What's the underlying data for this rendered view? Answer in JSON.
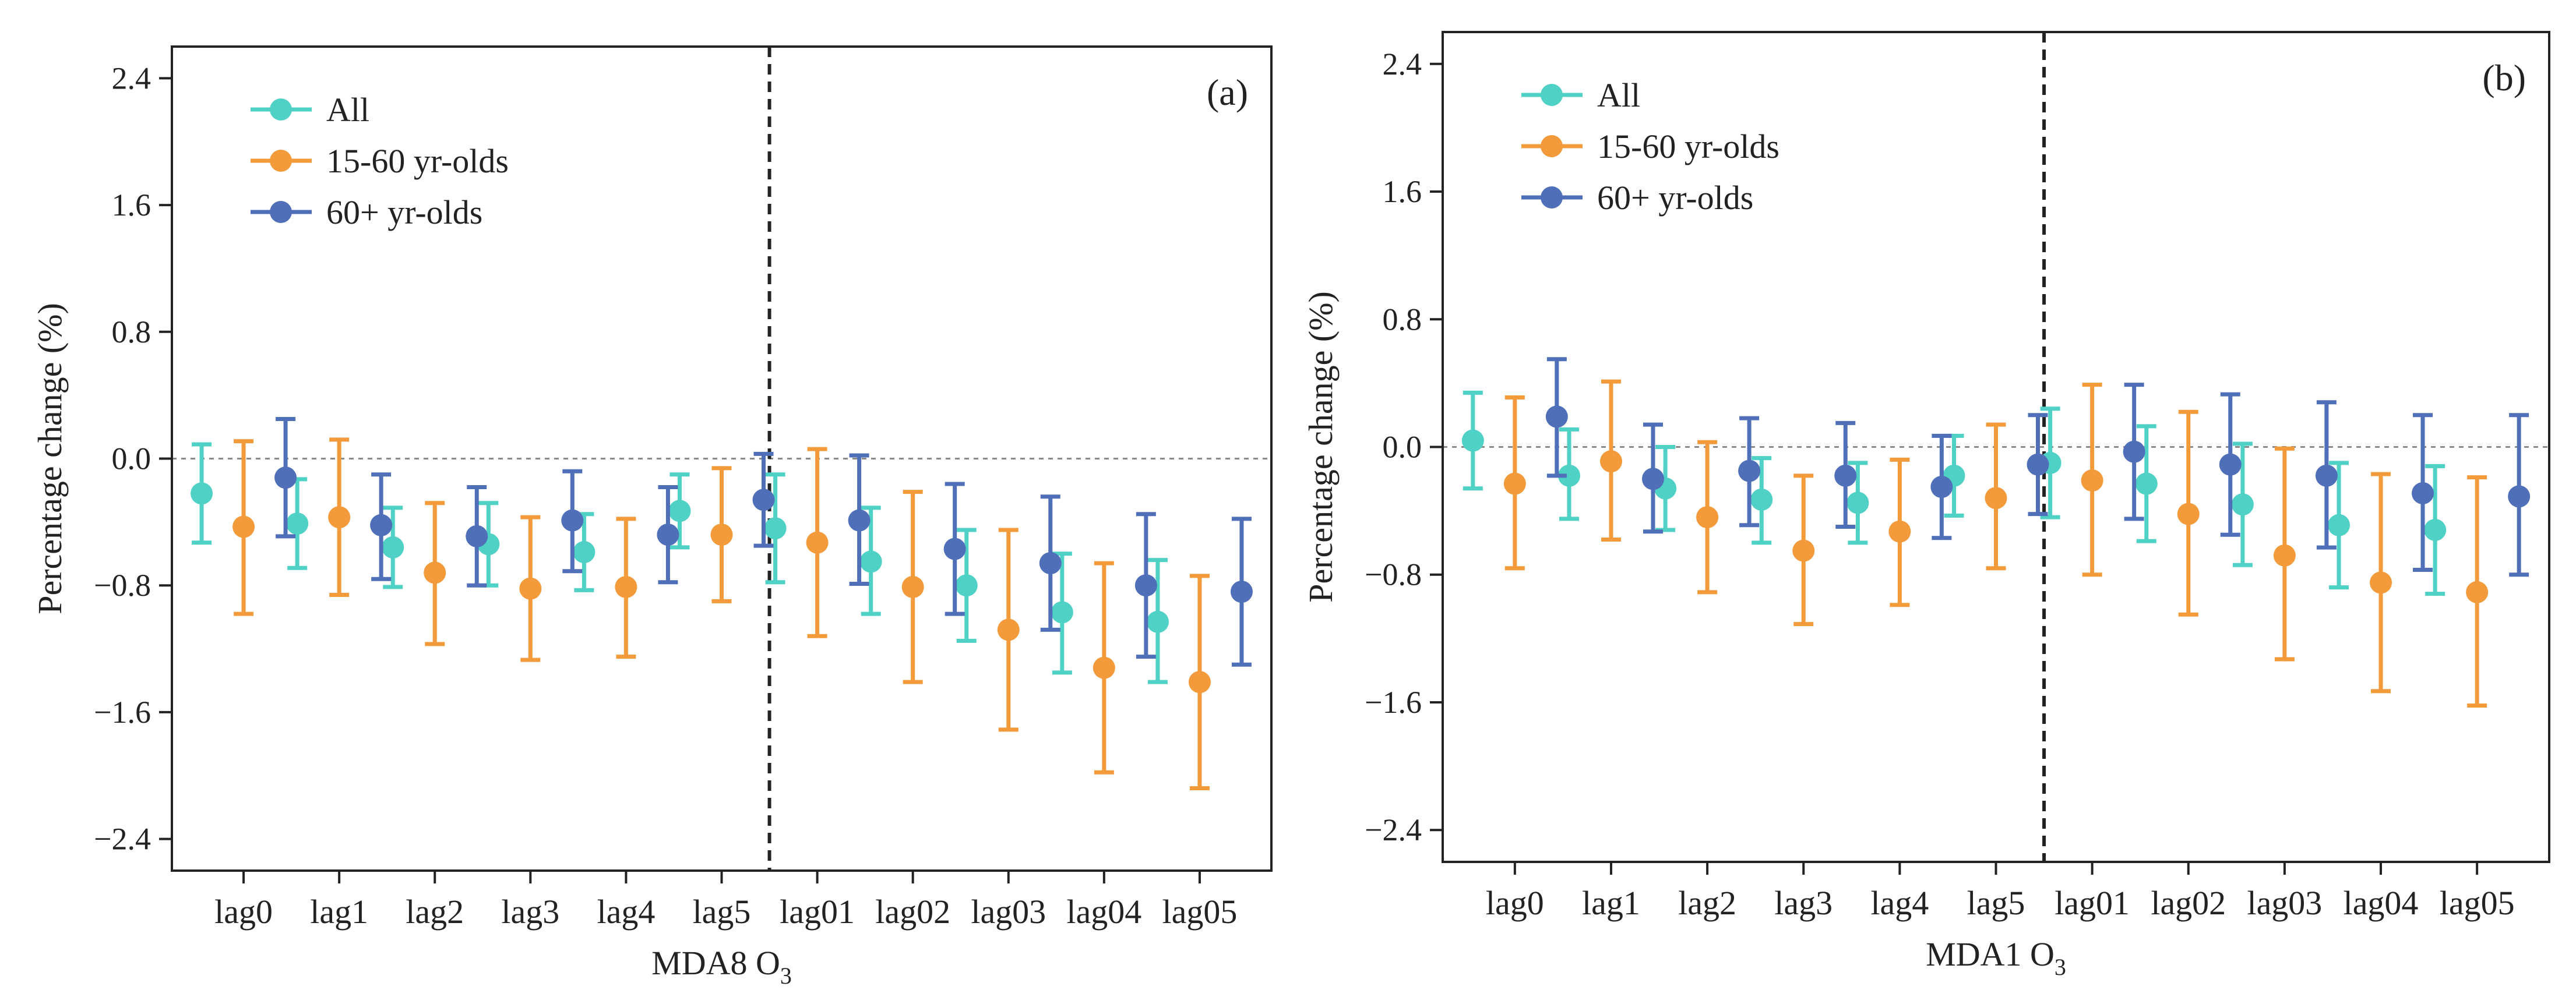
{
  "colors": {
    "all": "#4fd1c5",
    "young": "#f39a3a",
    "old": "#4f6fb8",
    "frame": "#222222",
    "zeroline": "#8a8a8a"
  },
  "chart_data": [
    {
      "type": "scatter",
      "panel_label": "(a)",
      "title": "",
      "xlabel": "MDA8 O",
      "xlabel_sub": "3",
      "ylabel": "Percentage change (%)",
      "ylim": [
        -2.6,
        2.6
      ],
      "yticks": [
        2.4,
        1.6,
        0.8,
        0.0,
        -0.8,
        -1.6,
        -2.4
      ],
      "ytick_labels": [
        "2.4",
        "1.6",
        "0.8",
        "0.0",
        "−0.8",
        "−1.6",
        "−2.4"
      ],
      "categories": [
        "lag0",
        "lag1",
        "lag2",
        "lag3",
        "lag4",
        "lag5",
        "lag01",
        "lag02",
        "lag03",
        "lag04",
        "lag05"
      ],
      "divider_after_index": 5,
      "legend_position": "top-left",
      "series": [
        {
          "name": "All",
          "color_key": "all",
          "values": [
            -0.22,
            -0.41,
            -0.56,
            -0.54,
            -0.59,
            -0.33,
            -0.44,
            -0.65,
            -0.8,
            -0.97,
            -1.03
          ],
          "lower": [
            -0.53,
            -0.69,
            -0.81,
            -0.8,
            -0.83,
            -0.56,
            -0.78,
            -0.98,
            -1.15,
            -1.35,
            -1.41
          ],
          "upper": [
            0.09,
            -0.13,
            -0.31,
            -0.28,
            -0.35,
            -0.1,
            -0.1,
            -0.31,
            -0.45,
            -0.6,
            -0.64
          ]
        },
        {
          "name": "15-60 yr-olds",
          "color_key": "young",
          "values": [
            -0.43,
            -0.37,
            -0.72,
            -0.82,
            -0.81,
            -0.48,
            -0.53,
            -0.81,
            -1.08,
            -1.32,
            -1.41
          ],
          "lower": [
            -0.98,
            -0.86,
            -1.17,
            -1.27,
            -1.25,
            -0.9,
            -1.12,
            -1.41,
            -1.71,
            -1.98,
            -2.08
          ],
          "upper": [
            0.11,
            0.12,
            -0.28,
            -0.37,
            -0.38,
            -0.06,
            0.06,
            -0.21,
            -0.45,
            -0.66,
            -0.74
          ]
        },
        {
          "name": "60+ yr-olds",
          "color_key": "old",
          "values": [
            -0.12,
            -0.42,
            -0.49,
            -0.39,
            -0.48,
            -0.26,
            -0.39,
            -0.57,
            -0.66,
            -0.8,
            -0.84
          ],
          "lower": [
            -0.49,
            -0.76,
            -0.8,
            -0.71,
            -0.78,
            -0.55,
            -0.79,
            -0.98,
            -1.08,
            -1.25,
            -1.3
          ],
          "upper": [
            0.25,
            -0.1,
            -0.18,
            -0.08,
            -0.18,
            0.03,
            0.02,
            -0.16,
            -0.24,
            -0.35,
            -0.38
          ]
        }
      ]
    },
    {
      "type": "scatter",
      "panel_label": "(b)",
      "title": "",
      "xlabel": "MDA1 O",
      "xlabel_sub": "3",
      "ylabel": "Percentage change (%)",
      "ylim": [
        -2.6,
        2.6
      ],
      "yticks": [
        2.4,
        1.6,
        0.8,
        0.0,
        -0.8,
        -1.6,
        -2.4
      ],
      "ytick_labels": [
        "2.4",
        "1.6",
        "0.8",
        "0.0",
        "−0.8",
        "−1.6",
        "−2.4"
      ],
      "categories": [
        "lag0",
        "lag1",
        "lag2",
        "lag3",
        "lag4",
        "lag5",
        "lag01",
        "lag02",
        "lag03",
        "lag04",
        "lag05"
      ],
      "divider_after_index": 5,
      "legend_position": "top-left",
      "series": [
        {
          "name": "All",
          "color_key": "all",
          "values": [
            0.04,
            -0.18,
            -0.26,
            -0.33,
            -0.35,
            -0.18,
            -0.1,
            -0.23,
            -0.36,
            -0.49,
            -0.52
          ],
          "lower": [
            -0.26,
            -0.45,
            -0.52,
            -0.6,
            -0.6,
            -0.43,
            -0.44,
            -0.59,
            -0.74,
            -0.88,
            -0.92
          ],
          "upper": [
            0.34,
            0.11,
            0.0,
            -0.07,
            -0.1,
            0.07,
            0.24,
            0.13,
            0.02,
            -0.1,
            -0.12
          ]
        },
        {
          "name": "15-60 yr-olds",
          "color_key": "young",
          "values": [
            -0.23,
            -0.09,
            -0.44,
            -0.65,
            -0.53,
            -0.32,
            -0.21,
            -0.42,
            -0.68,
            -0.85,
            -0.91
          ],
          "lower": [
            -0.76,
            -0.58,
            -0.91,
            -1.11,
            -0.99,
            -0.76,
            -0.8,
            -1.05,
            -1.33,
            -1.53,
            -1.62
          ],
          "upper": [
            0.31,
            0.41,
            0.03,
            -0.18,
            -0.08,
            0.14,
            0.39,
            0.22,
            -0.01,
            -0.17,
            -0.19
          ]
        },
        {
          "name": "60+ yr-olds",
          "color_key": "old",
          "values": [
            0.19,
            -0.2,
            -0.15,
            -0.18,
            -0.25,
            -0.11,
            -0.03,
            -0.11,
            -0.18,
            -0.29,
            -0.31
          ],
          "lower": [
            -0.18,
            -0.53,
            -0.49,
            -0.5,
            -0.57,
            -0.42,
            -0.45,
            -0.55,
            -0.63,
            -0.77,
            -0.8
          ],
          "upper": [
            0.55,
            0.14,
            0.18,
            0.15,
            0.07,
            0.2,
            0.39,
            0.33,
            0.28,
            0.2,
            0.2
          ]
        }
      ]
    }
  ]
}
